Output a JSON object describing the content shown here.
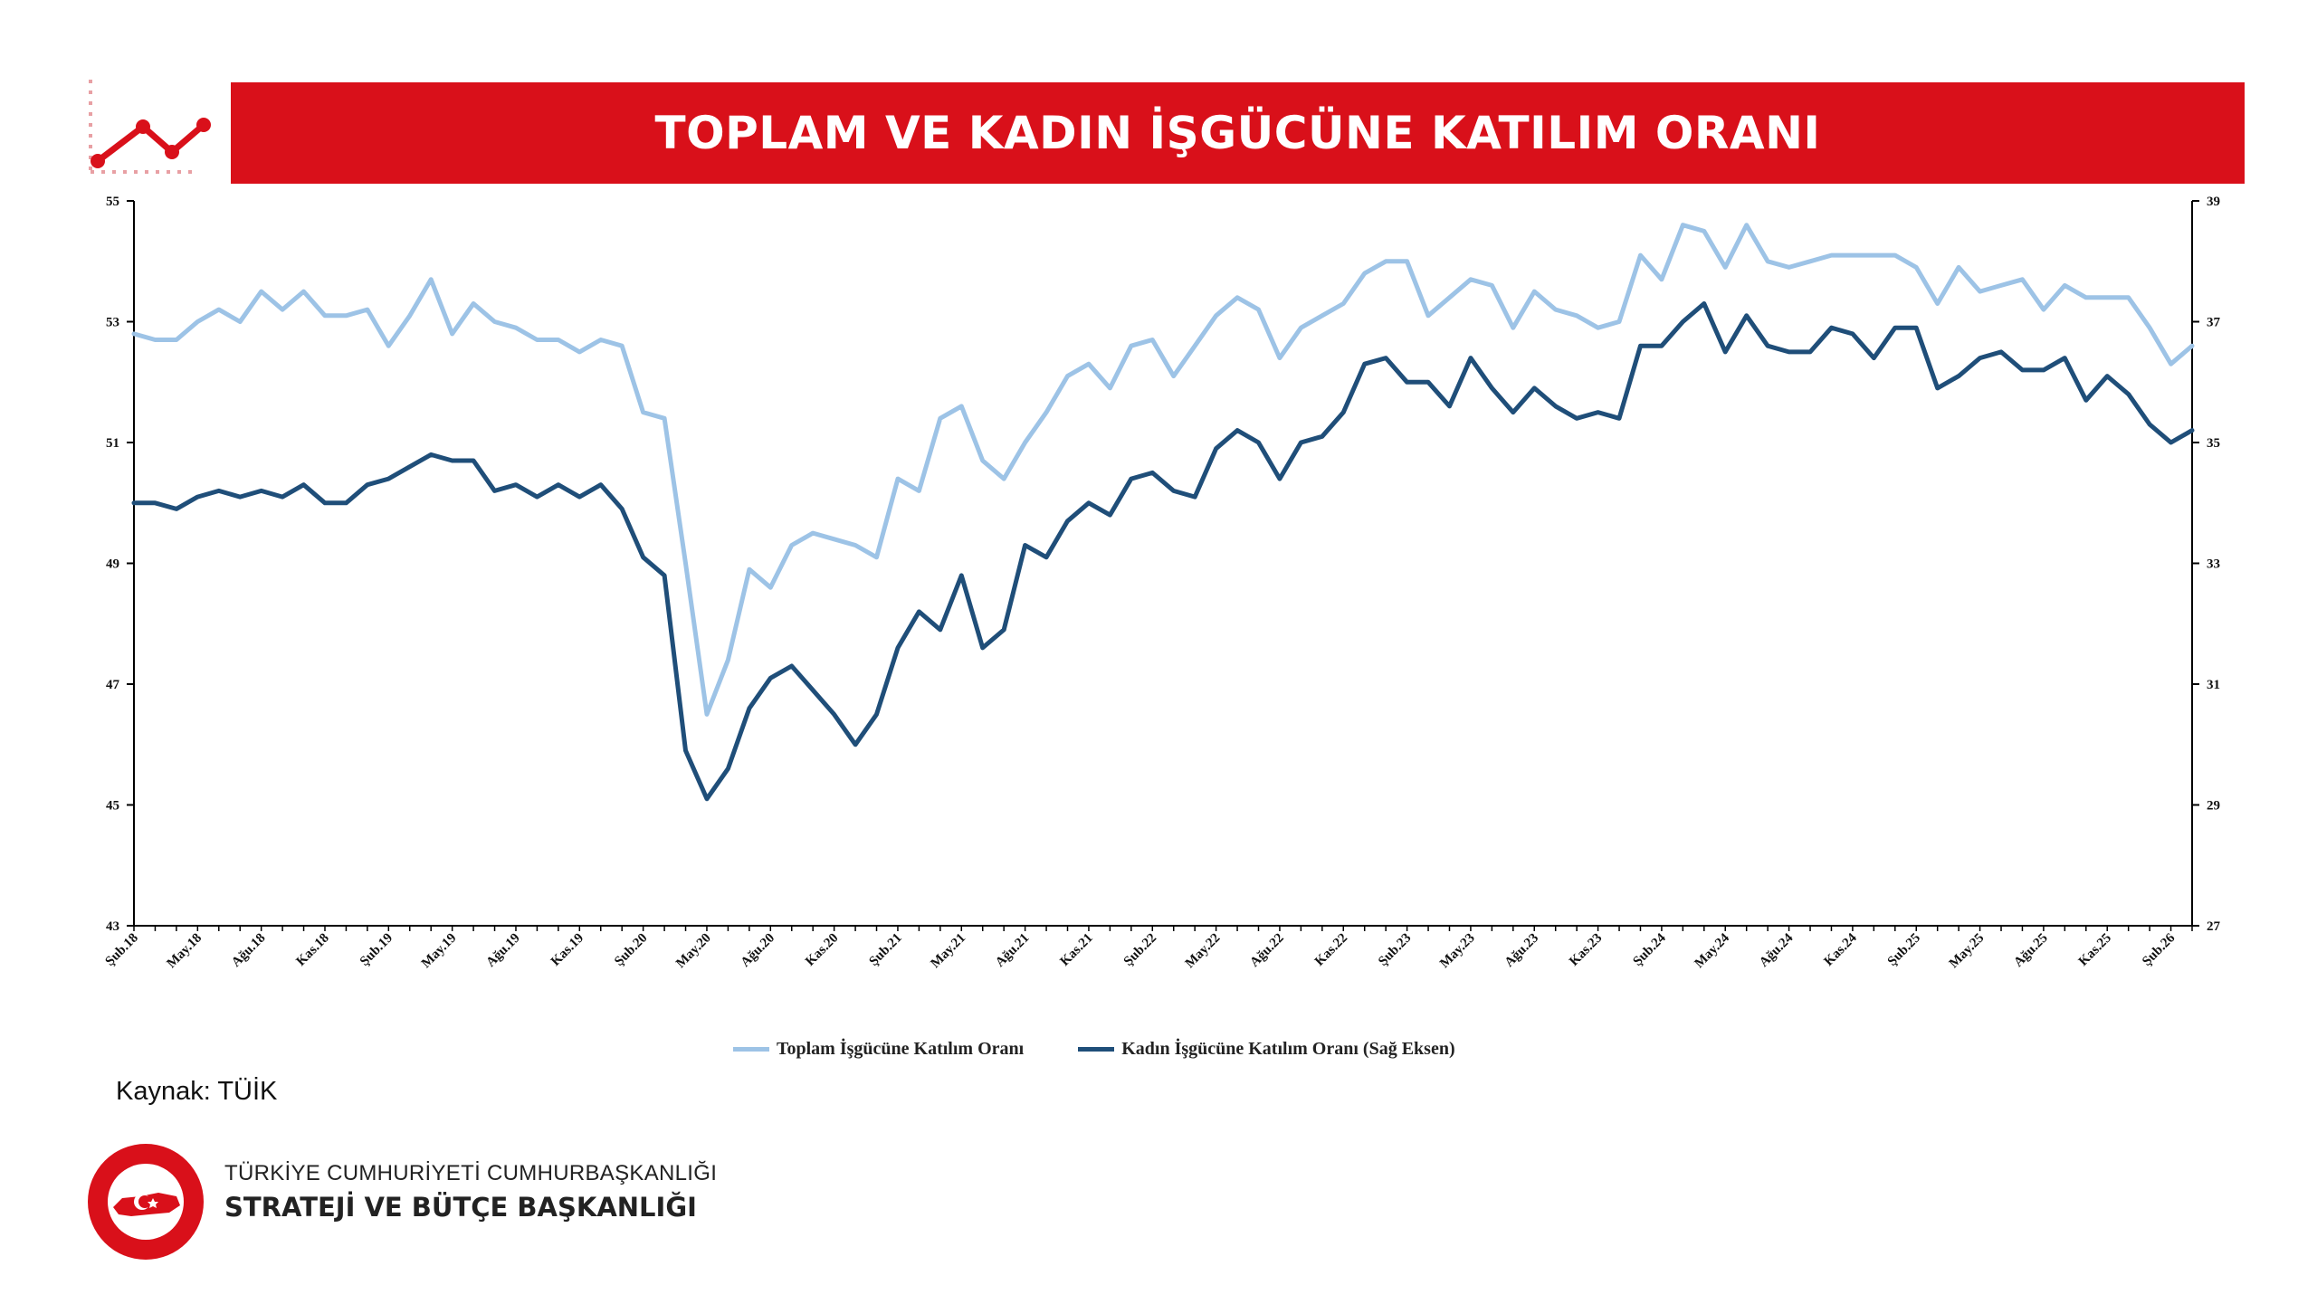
{
  "title": "TOPLAM VE KADIN İŞGÜCÜNE KATILIM ORANI",
  "source": "Kaynak: TÜİK",
  "footer": {
    "line1": "TÜRKİYE CUMHURİYETİ CUMHURBAŞKANLIĞI",
    "line2": "STRATEJİ VE BÜTÇE BAŞKANLIĞI"
  },
  "colors": {
    "title_bar": "#D9101A",
    "total_series": "#9DC3E6",
    "women_series": "#1F4E79",
    "accent": "#D9101A"
  },
  "icons": [
    "line-chart-icon",
    "seal-logo-icon"
  ],
  "chart_data": {
    "type": "line",
    "title": "TOPLAM VE KADIN İŞGÜCÜNE KATILIM ORANI",
    "grid": false,
    "legend_position": "bottom",
    "left_axis": {
      "min": 43,
      "max": 55,
      "ticks": [
        43,
        45,
        47,
        49,
        51,
        53,
        55
      ]
    },
    "right_axis": {
      "min": 27,
      "max": 39,
      "ticks": [
        27,
        29,
        31,
        33,
        35,
        37,
        39
      ]
    },
    "x_tick_labels": [
      "Şub.18",
      "May.18",
      "Ağu.18",
      "Kas.18",
      "Şub.19",
      "May.19",
      "Ağu.19",
      "Kas.19",
      "Şub.20",
      "May.20",
      "Ağu.20",
      "Kas.20",
      "Şub.21",
      "May.21",
      "Ağu.21",
      "Kas.21",
      "Şub.22",
      "May.22",
      "Ağu.22",
      "Kas.22",
      "Şub.23",
      "May.23",
      "Ağu.23",
      "Kas.23",
      "Şub.24",
      "May.24",
      "Ağu.24",
      "Kas.24",
      "Şub.25",
      "May.25",
      "Ağu.25",
      "Kas.25",
      "Şub.26"
    ],
    "x": [
      "2018-02",
      "2018-03",
      "2018-04",
      "2018-05",
      "2018-06",
      "2018-07",
      "2018-08",
      "2018-09",
      "2018-10",
      "2018-11",
      "2018-12",
      "2019-01",
      "2019-02",
      "2019-03",
      "2019-04",
      "2019-05",
      "2019-06",
      "2019-07",
      "2019-08",
      "2019-09",
      "2019-10",
      "2019-11",
      "2019-12",
      "2020-01",
      "2020-02",
      "2020-03",
      "2020-04",
      "2020-05",
      "2020-06",
      "2020-07",
      "2020-08",
      "2020-09",
      "2020-10",
      "2020-11",
      "2020-12",
      "2021-01",
      "2021-02",
      "2021-03",
      "2021-04",
      "2021-05",
      "2021-06",
      "2021-07",
      "2021-08",
      "2021-09",
      "2021-10",
      "2021-11",
      "2021-12",
      "2022-01",
      "2022-02",
      "2022-03",
      "2022-04",
      "2022-05",
      "2022-06",
      "2022-07",
      "2022-08",
      "2022-09",
      "2022-10",
      "2022-11",
      "2022-12",
      "2023-01",
      "2023-02",
      "2023-03",
      "2023-04",
      "2023-05",
      "2023-06",
      "2023-07",
      "2023-08",
      "2023-09",
      "2023-10",
      "2023-11",
      "2023-12",
      "2024-01",
      "2024-02",
      "2024-03",
      "2024-04",
      "2024-05",
      "2024-06",
      "2024-07",
      "2024-08",
      "2024-09",
      "2024-10",
      "2024-11",
      "2024-12",
      "2025-01",
      "2025-02",
      "2025-03",
      "2025-04",
      "2025-05",
      "2025-06",
      "2025-07",
      "2025-08",
      "2025-09",
      "2025-10",
      "2025-11",
      "2025-12",
      "2026-01",
      "2026-02",
      "2026-03"
    ],
    "series": [
      {
        "name": "Toplam İşgücüne Katılım Oranı",
        "axis": "left",
        "color": "#9DC3E6",
        "values": [
          52.8,
          52.7,
          52.7,
          53.0,
          53.2,
          53.0,
          53.5,
          53.2,
          53.5,
          53.1,
          53.1,
          53.2,
          52.6,
          53.1,
          53.7,
          52.8,
          53.3,
          53.0,
          52.9,
          52.7,
          52.7,
          52.5,
          52.7,
          52.6,
          51.5,
          51.4,
          49.0,
          46.5,
          47.4,
          48.9,
          48.6,
          49.3,
          49.5,
          49.4,
          49.3,
          49.1,
          50.4,
          50.2,
          51.4,
          51.6,
          50.7,
          50.4,
          51.0,
          51.5,
          52.1,
          52.3,
          51.9,
          52.6,
          52.7,
          52.1,
          52.6,
          53.1,
          53.4,
          53.2,
          52.4,
          52.9,
          53.1,
          53.3,
          53.8,
          54.0,
          54.0,
          53.1,
          53.4,
          53.7,
          53.6,
          52.9,
          53.5,
          53.2,
          53.1,
          52.9,
          53.0,
          54.1,
          53.7,
          54.6,
          54.5,
          53.9,
          54.6,
          54.0,
          53.9,
          54.0,
          54.1,
          54.1,
          54.1,
          54.1,
          53.9,
          53.3,
          53.9,
          53.5,
          53.6,
          53.7,
          53.2,
          53.6,
          53.4,
          53.4,
          53.4,
          52.9,
          52.3,
          52.6
        ]
      },
      {
        "name": "Kadın İşgücüne Katılım Oranı (Sağ Eksen)",
        "axis": "right",
        "color": "#1F4E79",
        "values": [
          34.0,
          34.0,
          33.9,
          34.1,
          34.2,
          34.1,
          34.2,
          34.1,
          34.3,
          34.0,
          34.0,
          34.3,
          34.4,
          34.6,
          34.8,
          34.7,
          34.7,
          34.2,
          34.3,
          34.1,
          34.3,
          34.1,
          34.3,
          33.9,
          33.1,
          32.8,
          29.9,
          29.1,
          29.6,
          30.6,
          31.1,
          31.3,
          30.9,
          30.5,
          30.0,
          30.5,
          31.6,
          32.2,
          31.9,
          32.8,
          31.6,
          31.9,
          33.3,
          33.1,
          33.7,
          34.0,
          33.8,
          34.4,
          34.5,
          34.2,
          34.1,
          34.9,
          35.2,
          35.0,
          34.4,
          35.0,
          35.1,
          35.5,
          36.3,
          36.4,
          36.0,
          36.0,
          35.6,
          36.4,
          35.9,
          35.5,
          35.9,
          35.6,
          35.4,
          35.5,
          35.4,
          36.6,
          36.6,
          37.0,
          37.3,
          36.5,
          37.1,
          36.6,
          36.5,
          36.5,
          36.9,
          36.8,
          36.4,
          36.9,
          36.9,
          35.9,
          36.1,
          36.4,
          36.5,
          36.2,
          36.2,
          36.4,
          35.7,
          36.1,
          35.8,
          35.3,
          35.0,
          35.2
        ]
      }
    ]
  }
}
